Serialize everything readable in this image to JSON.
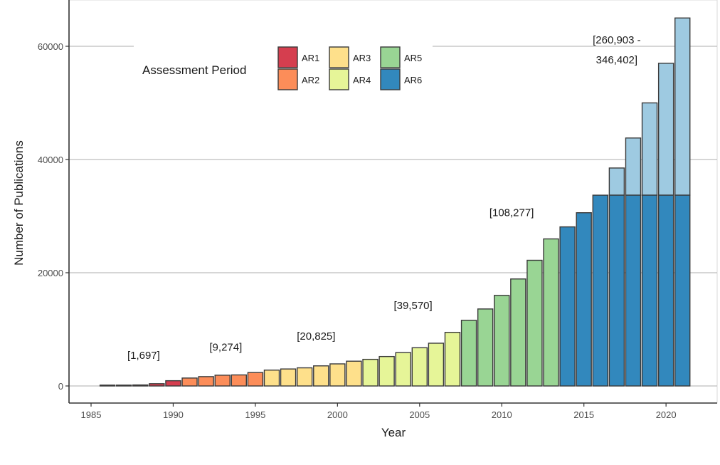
{
  "chart_data": {
    "type": "bar",
    "title": "",
    "xlabel": "Year",
    "ylabel": "Number of Publications",
    "xlim": [
      1984,
      2024
    ],
    "ylim": [
      -3000,
      68000
    ],
    "x_ticks": [
      1985,
      1990,
      1995,
      2000,
      2005,
      2010,
      2015,
      2020
    ],
    "y_ticks": [
      0,
      20000,
      40000,
      60000
    ],
    "grid": "horizontal-major",
    "legend": {
      "title": "Assessment Period",
      "placement": "top-center",
      "entries": [
        {
          "label": "AR1",
          "color": "#d53e4f"
        },
        {
          "label": "AR2",
          "color": "#fc8d59"
        },
        {
          "label": "AR3",
          "color": "#fee08b"
        },
        {
          "label": "AR4",
          "color": "#e6f598"
        },
        {
          "label": "AR5",
          "color": "#99d594"
        },
        {
          "label": "AR6",
          "color": "#3288bd"
        }
      ]
    },
    "projection_color": "#9ecae1",
    "bars": [
      {
        "year": 1986,
        "value": 80,
        "period": "AR1"
      },
      {
        "year": 1987,
        "value": 110,
        "period": "AR1"
      },
      {
        "year": 1988,
        "value": 180,
        "period": "AR1"
      },
      {
        "year": 1989,
        "value": 400,
        "period": "AR1"
      },
      {
        "year": 1990,
        "value": 927,
        "period": "AR1"
      },
      {
        "year": 1991,
        "value": 1400,
        "period": "AR2"
      },
      {
        "year": 1992,
        "value": 1650,
        "period": "AR2"
      },
      {
        "year": 1993,
        "value": 1900,
        "period": "AR2"
      },
      {
        "year": 1994,
        "value": 1950,
        "period": "AR2"
      },
      {
        "year": 1995,
        "value": 2374,
        "period": "AR2"
      },
      {
        "year": 1996,
        "value": 2800,
        "period": "AR3"
      },
      {
        "year": 1997,
        "value": 3000,
        "period": "AR3"
      },
      {
        "year": 1998,
        "value": 3200,
        "period": "AR3"
      },
      {
        "year": 1999,
        "value": 3550,
        "period": "AR3"
      },
      {
        "year": 2000,
        "value": 3900,
        "period": "AR3"
      },
      {
        "year": 2001,
        "value": 4375,
        "period": "AR3"
      },
      {
        "year": 2002,
        "value": 4700,
        "period": "AR4"
      },
      {
        "year": 2003,
        "value": 5200,
        "period": "AR4"
      },
      {
        "year": 2004,
        "value": 5900,
        "period": "AR4"
      },
      {
        "year": 2005,
        "value": 6750,
        "period": "AR4"
      },
      {
        "year": 2006,
        "value": 7550,
        "period": "AR4"
      },
      {
        "year": 2007,
        "value": 9470,
        "period": "AR4"
      },
      {
        "year": 2008,
        "value": 11600,
        "period": "AR5"
      },
      {
        "year": 2009,
        "value": 13600,
        "period": "AR5"
      },
      {
        "year": 2010,
        "value": 16000,
        "period": "AR5"
      },
      {
        "year": 2011,
        "value": 18900,
        "period": "AR5"
      },
      {
        "year": 2012,
        "value": 22200,
        "period": "AR5"
      },
      {
        "year": 2013,
        "value": 25977,
        "period": "AR5"
      },
      {
        "year": 2014,
        "value": 28100,
        "period": "AR6"
      },
      {
        "year": 2015,
        "value": 30600,
        "period": "AR6"
      },
      {
        "year": 2016,
        "value": 33700,
        "period": "AR6"
      },
      {
        "year": 2017,
        "value": 33700,
        "projected_total": 38500,
        "period": "AR6"
      },
      {
        "year": 2018,
        "value": 33700,
        "projected_total": 43800,
        "period": "AR6"
      },
      {
        "year": 2019,
        "value": 33700,
        "projected_total": 50000,
        "period": "AR6"
      },
      {
        "year": 2020,
        "value": 33700,
        "projected_total": 57000,
        "period": "AR6"
      },
      {
        "year": 2021,
        "value": 33700,
        "projected_total": 65000,
        "period": "AR6"
      }
    ],
    "annotations": [
      {
        "text": "[1,697]",
        "period": "AR1",
        "x": 1988.2,
        "y": 4800
      },
      {
        "text": "[9,274]",
        "period": "AR2",
        "x": 1993.2,
        "y": 6200
      },
      {
        "text": "[20,825]",
        "period": "AR3",
        "x": 1998.7,
        "y": 8200
      },
      {
        "text": "[39,570]",
        "period": "AR4",
        "x": 2004.6,
        "y": 13600
      },
      {
        "text": "[108,277]",
        "period": "AR5",
        "x": 2010.6,
        "y": 30000
      },
      {
        "text": "[260,903 -",
        "period": "AR6",
        "x": 2017.0,
        "y": 60500
      },
      {
        "text": "346,402]",
        "period": "AR6-cont",
        "x": 2017.0,
        "y": 57000
      }
    ]
  }
}
